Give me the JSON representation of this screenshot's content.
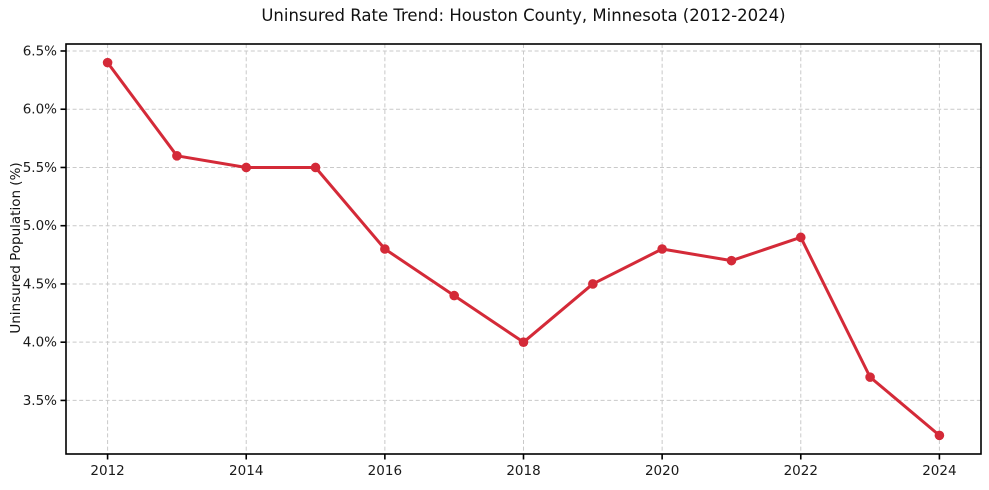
{
  "page": {
    "background_color": "#ffffff"
  },
  "chart_data": {
    "type": "line",
    "title": "Uninsured Rate Trend: Houston County, Minnesota (2012-2024)",
    "xlabel": "",
    "ylabel": "Uninsured Population (%)",
    "x": [
      2012,
      2013,
      2014,
      2015,
      2016,
      2017,
      2018,
      2019,
      2020,
      2021,
      2022,
      2023,
      2024
    ],
    "values": [
      6.4,
      5.6,
      5.5,
      5.5,
      4.8,
      4.4,
      4.0,
      4.5,
      4.8,
      4.7,
      4.9,
      3.7,
      3.2
    ],
    "xlim": [
      2011.4,
      2024.6
    ],
    "ylim": [
      3.04,
      6.56
    ],
    "xticks": {
      "values": [
        2012,
        2014,
        2016,
        2018,
        2020,
        2022,
        2024
      ],
      "labels": [
        "2012",
        "2014",
        "2016",
        "2018",
        "2020",
        "2022",
        "2024"
      ]
    },
    "yticks": {
      "values": [
        3.5,
        4.0,
        4.5,
        5.0,
        5.5,
        6.0,
        6.5
      ],
      "labels": [
        "3.5%",
        "4.0%",
        "4.5%",
        "5.0%",
        "5.5%",
        "6.0%",
        "6.5%"
      ]
    },
    "grid": true,
    "grid_style": "dashed",
    "grid_color": "#c9c9c9",
    "line_color": "#d42a38",
    "marker": "circle",
    "axis_color": "#000000",
    "text_color": "#1a1a1a",
    "legend": "none"
  }
}
